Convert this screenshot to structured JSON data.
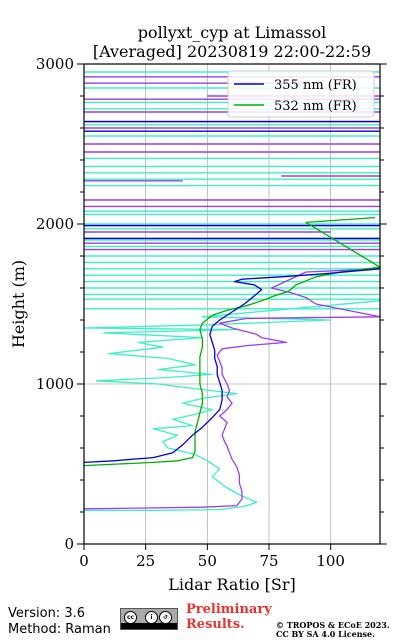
{
  "chart_data": {
    "type": "line",
    "title": [
      "pollyxt_cyp at Limassol",
      "[Averaged] 20230819 22:00-22:59"
    ],
    "xlabel": "Lidar Ratio [Sr]",
    "ylabel": "Height (m)",
    "xlim": [
      0,
      120
    ],
    "ylim": [
      0,
      3000
    ],
    "xticks": [
      0,
      25,
      50,
      75,
      100
    ],
    "yticks": [
      0,
      1000,
      2000,
      3000
    ],
    "grid": true,
    "legend_position": "top-right",
    "legend": [
      {
        "name": "355 nm (FR)",
        "color": "#0000dd"
      },
      {
        "name": "532 nm (FR)",
        "color": "#00b000"
      }
    ],
    "series": [
      {
        "name": "355 nm (FR)",
        "color": "#0000dd",
        "points": [
          [
            0,
            510
          ],
          [
            12,
            520
          ],
          [
            28,
            540
          ],
          [
            36,
            570
          ],
          [
            40,
            620
          ],
          [
            44,
            680
          ],
          [
            48,
            730
          ],
          [
            52,
            790
          ],
          [
            55,
            840
          ],
          [
            56,
            900
          ],
          [
            56,
            960
          ],
          [
            55,
            1010
          ],
          [
            54,
            1060
          ],
          [
            54,
            1110
          ],
          [
            53,
            1160
          ],
          [
            53,
            1210
          ],
          [
            52,
            1260
          ],
          [
            51,
            1310
          ],
          [
            52,
            1360
          ],
          [
            55,
            1400
          ],
          [
            60,
            1450
          ],
          [
            65,
            1500
          ],
          [
            69,
            1550
          ],
          [
            72,
            1590
          ],
          [
            69,
            1620
          ],
          [
            61,
            1640
          ],
          [
            64,
            1655
          ],
          [
            80,
            1670
          ],
          [
            98,
            1690
          ],
          [
            120,
            1720
          ]
        ]
      },
      {
        "name": "532 nm (FR)",
        "color": "#00b000",
        "points": [
          [
            0,
            490
          ],
          [
            14,
            500
          ],
          [
            28,
            510
          ],
          [
            38,
            520
          ],
          [
            44,
            540
          ],
          [
            45,
            580
          ],
          [
            45,
            640
          ],
          [
            45,
            700
          ],
          [
            46,
            760
          ],
          [
            47,
            820
          ],
          [
            48,
            880
          ],
          [
            48,
            940
          ],
          [
            47,
            1000
          ],
          [
            47,
            1060
          ],
          [
            47,
            1120
          ],
          [
            47,
            1170
          ],
          [
            48,
            1230
          ],
          [
            48,
            1280
          ],
          [
            47,
            1340
          ],
          [
            48,
            1380
          ],
          [
            52,
            1430
          ],
          [
            58,
            1460
          ],
          [
            66,
            1490
          ],
          [
            72,
            1520
          ],
          [
            77,
            1550
          ],
          [
            83,
            1580
          ],
          [
            86,
            1620
          ],
          [
            94,
            1670
          ],
          [
            104,
            1700
          ],
          [
            120,
            1730
          ],
          [
            90,
            2010
          ],
          [
            118,
            2040
          ]
        ]
      },
      {
        "name": "",
        "color": "#9b3cf0",
        "points": [
          [
            0,
            220
          ],
          [
            25,
            225
          ],
          [
            48,
            230
          ],
          [
            62,
            240
          ],
          [
            64,
            280
          ],
          [
            64,
            330
          ],
          [
            63,
            380
          ],
          [
            63,
            430
          ],
          [
            62,
            480
          ],
          [
            60,
            530
          ],
          [
            59,
            570
          ],
          [
            58,
            610
          ],
          [
            57,
            640
          ],
          [
            56,
            680
          ],
          [
            57,
            720
          ],
          [
            58,
            760
          ],
          [
            55,
            800
          ],
          [
            58,
            840
          ],
          [
            60,
            880
          ],
          [
            58,
            920
          ],
          [
            59,
            960
          ],
          [
            58,
            1000
          ],
          [
            57,
            1030
          ],
          [
            56,
            1060
          ],
          [
            56,
            1100
          ],
          [
            55,
            1140
          ],
          [
            54,
            1180
          ],
          [
            56,
            1220
          ],
          [
            66,
            1240
          ],
          [
            82,
            1260
          ],
          [
            72,
            1290
          ],
          [
            70,
            1310
          ],
          [
            60,
            1350
          ],
          [
            55,
            1380
          ],
          [
            66,
            1410
          ],
          [
            120,
            1420
          ],
          [
            94,
            1500
          ],
          [
            90,
            1540
          ],
          [
            84,
            1570
          ],
          [
            76,
            1600
          ],
          [
            90,
            1700
          ],
          [
            120,
            1720
          ]
        ]
      },
      {
        "name": "",
        "color": "#3af0c8",
        "points": [
          [
            0,
            210
          ],
          [
            28,
            210
          ],
          [
            55,
            215
          ],
          [
            65,
            235
          ],
          [
            70,
            260
          ],
          [
            64,
            300
          ],
          [
            58,
            350
          ],
          [
            52,
            420
          ],
          [
            55,
            470
          ],
          [
            50,
            520
          ],
          [
            45,
            560
          ],
          [
            34,
            600
          ],
          [
            32,
            640
          ],
          [
            38,
            680
          ],
          [
            28,
            720
          ],
          [
            44,
            740
          ],
          [
            36,
            780
          ],
          [
            45,
            810
          ],
          [
            52,
            840
          ],
          [
            40,
            880
          ],
          [
            48,
            910
          ],
          [
            62,
            940
          ],
          [
            40,
            980
          ],
          [
            30,
            1000
          ],
          [
            5,
            1020
          ],
          [
            33,
            1040
          ],
          [
            52,
            1060
          ],
          [
            30,
            1090
          ],
          [
            45,
            1120
          ],
          [
            34,
            1160
          ],
          [
            10,
            1190
          ],
          [
            32,
            1230
          ],
          [
            22,
            1260
          ],
          [
            48,
            1290
          ],
          [
            8,
            1320
          ],
          [
            62,
            1340
          ],
          [
            0,
            1350
          ],
          [
            50,
            1370
          ],
          [
            100,
            1400
          ],
          [
            48,
            1420
          ],
          [
            120,
            1520
          ]
        ]
      }
    ],
    "noise_lines": [
      {
        "color": "#9b3cf0",
        "rows": [
          [
            2270,
            0,
            40
          ],
          [
            2300,
            80,
            120
          ],
          [
            2450,
            0,
            120
          ],
          [
            2500,
            0,
            120
          ],
          [
            2600,
            0,
            120
          ],
          [
            2640,
            0,
            120
          ],
          [
            2700,
            0,
            120
          ],
          [
            2780,
            0,
            120
          ],
          [
            2800,
            50,
            120
          ],
          [
            2880,
            0,
            90
          ],
          [
            2920,
            0,
            120
          ],
          [
            2110,
            0,
            120
          ],
          [
            2150,
            0,
            120
          ],
          [
            1990,
            0,
            120
          ],
          [
            1950,
            0,
            100
          ],
          [
            1910,
            0,
            120
          ],
          [
            1880,
            0,
            120
          ],
          [
            1840,
            0,
            120
          ]
        ]
      },
      {
        "color": "#3af0c8",
        "rows": [
          [
            2240,
            0,
            120
          ],
          [
            2280,
            0,
            120
          ],
          [
            2320,
            0,
            120
          ],
          [
            2360,
            0,
            120
          ],
          [
            2410,
            0,
            120
          ],
          [
            2550,
            0,
            120
          ],
          [
            2620,
            0,
            120
          ],
          [
            2720,
            0,
            120
          ],
          [
            2760,
            0,
            120
          ],
          [
            2850,
            0,
            120
          ],
          [
            2950,
            0,
            120
          ],
          [
            2080,
            0,
            120
          ],
          [
            2060,
            0,
            120
          ],
          [
            2000,
            0,
            120
          ],
          [
            1970,
            0,
            120
          ],
          [
            1900,
            0,
            120
          ],
          [
            1860,
            0,
            120
          ],
          [
            1800,
            0,
            120
          ],
          [
            1760,
            0,
            120
          ],
          [
            1720,
            0,
            120
          ],
          [
            1680,
            0,
            120
          ],
          [
            1640,
            0,
            120
          ],
          [
            1600,
            0,
            120
          ],
          [
            1560,
            0,
            120
          ],
          [
            1530,
            0,
            120
          ],
          [
            1470,
            0,
            120
          ]
        ]
      },
      {
        "color": "#0000dd",
        "rows": [
          [
            2640,
            0,
            120
          ],
          [
            2580,
            0,
            120
          ],
          [
            1990,
            0,
            120
          ],
          [
            1910,
            0,
            120
          ]
        ]
      }
    ]
  },
  "footer": {
    "version": "Version: 3.6",
    "method": "Method: Raman",
    "prelim_1": "Preliminary",
    "prelim_2": "Results.",
    "copyright_1": "© TROPOS & ECoE 2023.",
    "copyright_2": "CC BY SA 4.0 License."
  },
  "icons": [
    "creative-commons-icon",
    "attribution-icon",
    "share-alike-icon"
  ]
}
